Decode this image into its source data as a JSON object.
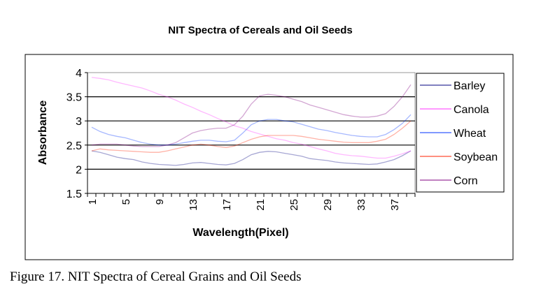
{
  "chart_data": {
    "type": "line",
    "title": "NIT Spectra of Cereals and Oil Seeds",
    "xlabel": "Wavelength(Pixel)",
    "ylabel": "Absorbance",
    "ylim": [
      1.5,
      4
    ],
    "yticks": [
      "1.5",
      "2",
      "2.5",
      "3",
      "3.5",
      "4"
    ],
    "xtick_labels": [
      "1",
      "5",
      "9",
      "13",
      "17",
      "21",
      "25",
      "29",
      "33",
      "37"
    ],
    "x": [
      1,
      2,
      3,
      4,
      5,
      6,
      7,
      8,
      9,
      10,
      11,
      12,
      13,
      14,
      15,
      16,
      17,
      18,
      19,
      20,
      21,
      22,
      23,
      24,
      25,
      26,
      27,
      28,
      29,
      30,
      31,
      32,
      33,
      34,
      35,
      36,
      37,
      38,
      39
    ],
    "grid": "horizontal",
    "legend_position": "right",
    "series": [
      {
        "name": "Barley",
        "color": "#000080",
        "values": [
          2.38,
          2.35,
          2.3,
          2.25,
          2.22,
          2.2,
          2.15,
          2.12,
          2.1,
          2.09,
          2.08,
          2.1,
          2.13,
          2.14,
          2.12,
          2.1,
          2.09,
          2.12,
          2.2,
          2.3,
          2.35,
          2.37,
          2.36,
          2.33,
          2.3,
          2.27,
          2.22,
          2.2,
          2.18,
          2.15,
          2.13,
          2.12,
          2.11,
          2.1,
          2.11,
          2.15,
          2.2,
          2.28,
          2.38
        ]
      },
      {
        "name": "Canola",
        "color": "#ff33ff",
        "values": [
          3.9,
          3.88,
          3.85,
          3.8,
          3.76,
          3.72,
          3.68,
          3.62,
          3.55,
          3.5,
          3.43,
          3.35,
          3.28,
          3.2,
          3.13,
          3.05,
          2.98,
          2.9,
          2.85,
          2.78,
          2.73,
          2.68,
          2.63,
          2.6,
          2.55,
          2.52,
          2.47,
          2.42,
          2.38,
          2.33,
          2.3,
          2.28,
          2.27,
          2.25,
          2.23,
          2.23,
          2.27,
          2.32,
          2.38
        ]
      },
      {
        "name": "Wheat",
        "color": "#0033ff",
        "values": [
          2.87,
          2.78,
          2.72,
          2.68,
          2.65,
          2.6,
          2.55,
          2.52,
          2.5,
          2.5,
          2.52,
          2.55,
          2.58,
          2.6,
          2.6,
          2.58,
          2.57,
          2.6,
          2.75,
          2.92,
          3.0,
          3.03,
          3.03,
          3.0,
          2.98,
          2.93,
          2.88,
          2.83,
          2.8,
          2.76,
          2.73,
          2.7,
          2.68,
          2.67,
          2.67,
          2.72,
          2.82,
          2.95,
          3.13
        ]
      },
      {
        "name": "Soybean",
        "color": "#ff2200",
        "values": [
          2.38,
          2.42,
          2.4,
          2.39,
          2.38,
          2.37,
          2.36,
          2.35,
          2.35,
          2.38,
          2.42,
          2.46,
          2.5,
          2.52,
          2.5,
          2.47,
          2.45,
          2.48,
          2.55,
          2.62,
          2.67,
          2.7,
          2.7,
          2.7,
          2.7,
          2.68,
          2.65,
          2.62,
          2.6,
          2.58,
          2.56,
          2.55,
          2.55,
          2.55,
          2.58,
          2.62,
          2.72,
          2.85,
          3.0
        ]
      },
      {
        "name": "Corn",
        "color": "#800080",
        "values": [
          2.5,
          2.52,
          2.52,
          2.52,
          2.5,
          2.48,
          2.47,
          2.47,
          2.47,
          2.5,
          2.55,
          2.65,
          2.75,
          2.8,
          2.83,
          2.85,
          2.85,
          2.92,
          3.1,
          3.35,
          3.52,
          3.55,
          3.53,
          3.5,
          3.45,
          3.4,
          3.33,
          3.28,
          3.23,
          3.18,
          3.13,
          3.1,
          3.08,
          3.08,
          3.1,
          3.15,
          3.3,
          3.5,
          3.75
        ]
      }
    ]
  },
  "caption": "Figure 17. NIT Spectra of Cereal Grains and Oil Seeds"
}
